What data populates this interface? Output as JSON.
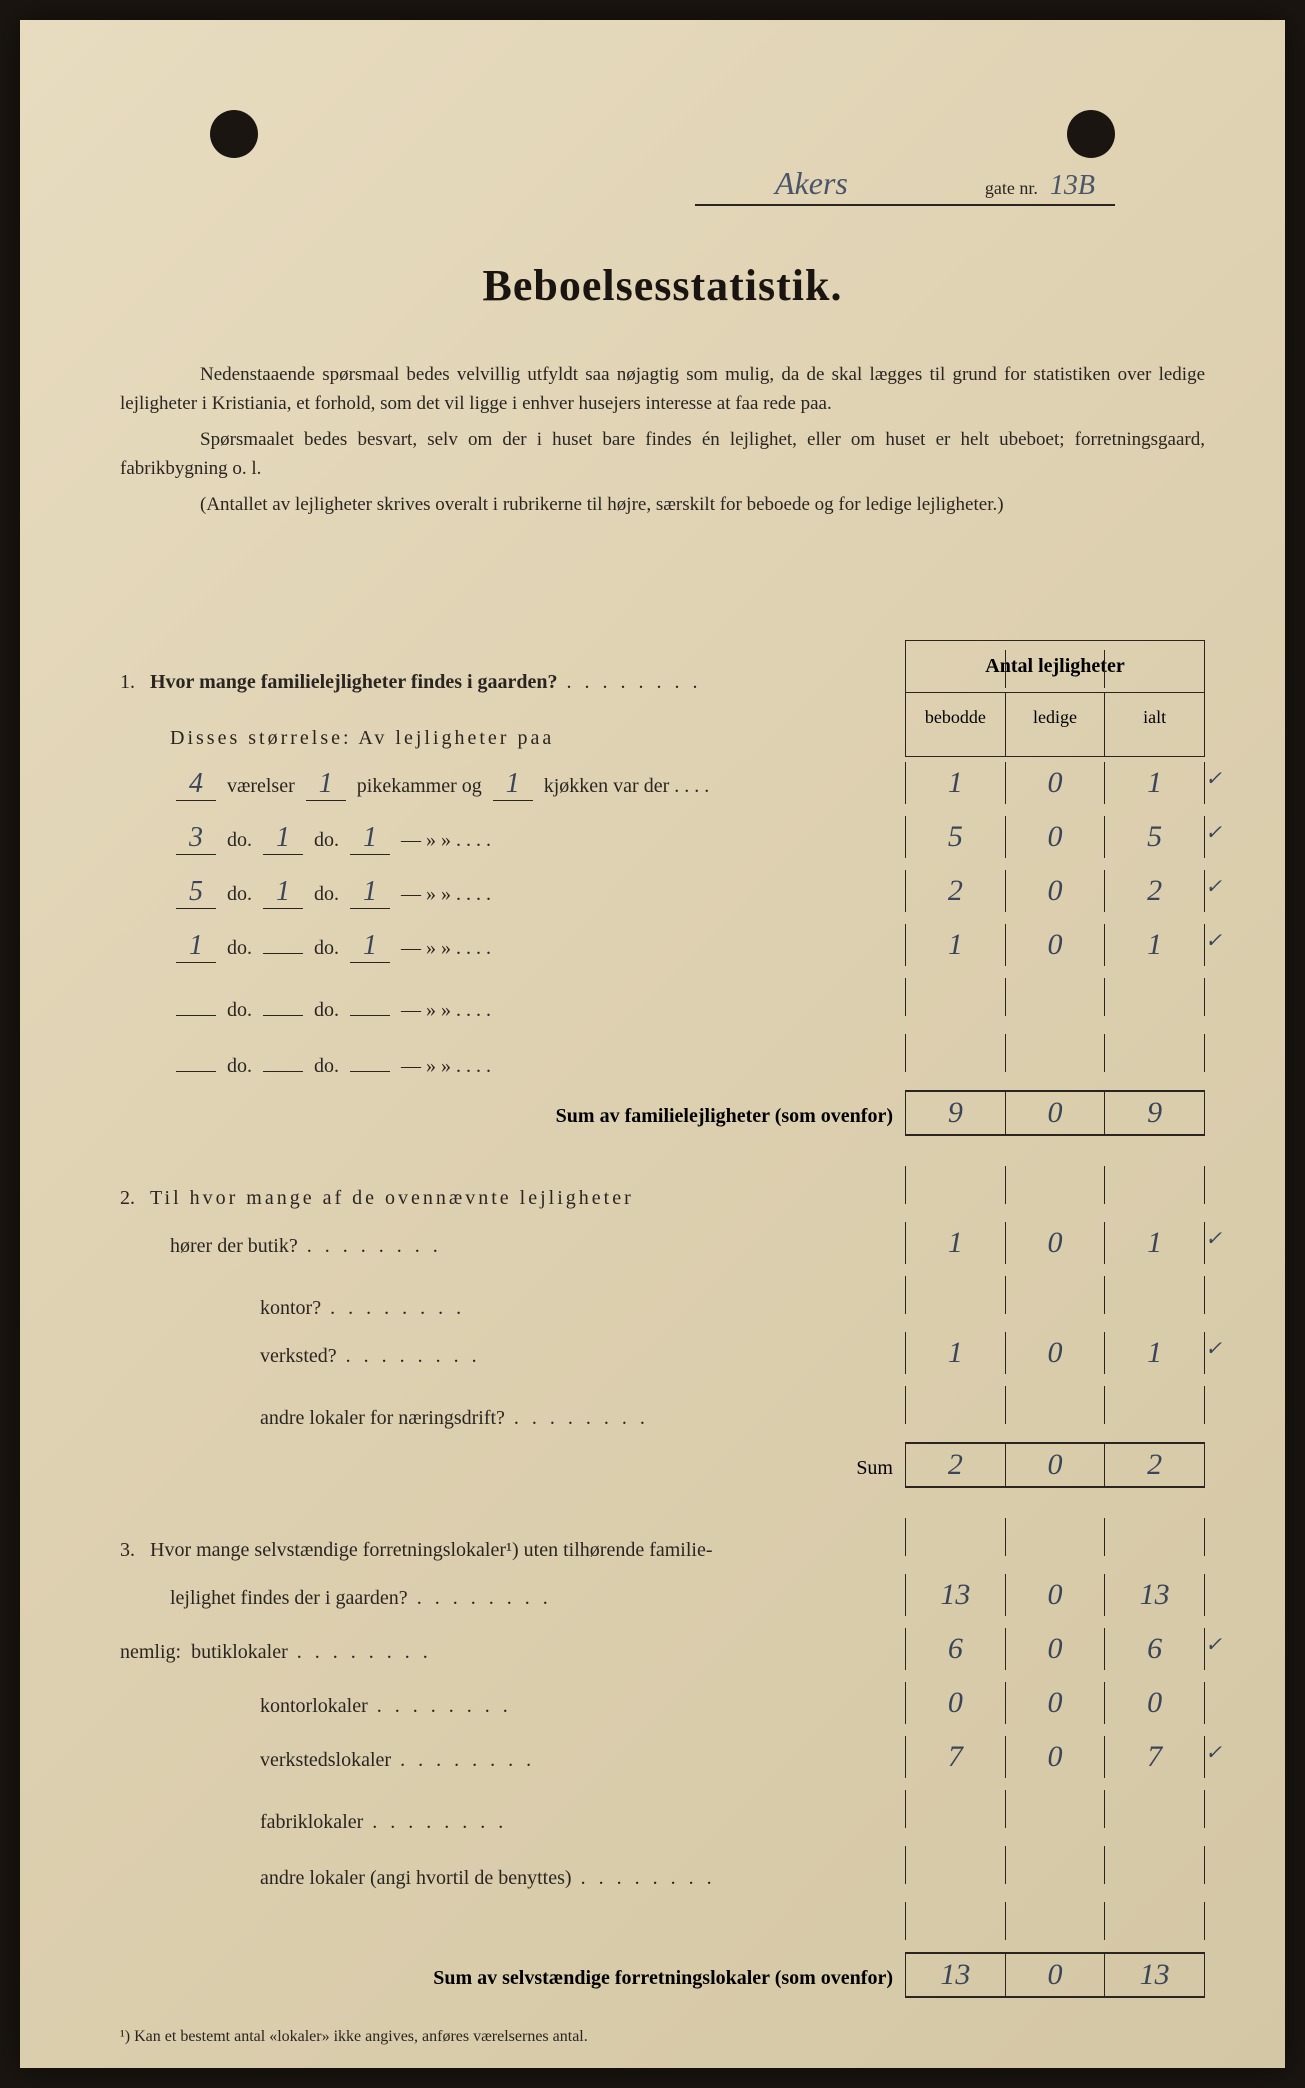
{
  "header": {
    "street": "Akers",
    "gate_label": "gate nr.",
    "gate_nr": "13B"
  },
  "title": "Beboelsesstatistik.",
  "intro": {
    "p1": "Nedenstaaende spørsmaal bedes velvillig utfyldt saa nøjagtig som mulig, da de skal lægges til grund for statistiken over ledige lejligheter i Kristiania, et forhold, som det vil ligge i enhver husejers interesse at faa rede paa.",
    "p2": "Spørsmaalet bedes besvart, selv om der i huset bare findes én lejlighet, eller om huset er helt ubeboet; forretningsgaard, fabrikbygning o. l.",
    "p3": "(Antallet av lejligheter skrives overalt i rubrikerne til højre, særskilt for beboede og for ledige lejligheter.)"
  },
  "table_header": {
    "title": "Antal lejligheter",
    "cols": [
      "bebodde",
      "ledige",
      "ialt"
    ]
  },
  "q1": {
    "label": "Hvor mange familielejligheter findes i gaarden?",
    "sub_label": "Disses størrelse:  Av lejligheter paa",
    "rows": [
      {
        "vaerelser": "4",
        "pike": "1",
        "kjokken": "1",
        "b": "1",
        "l": "0",
        "i": "1",
        "check": true
      },
      {
        "vaerelser": "3",
        "pike": "1",
        "kjokken": "1",
        "b": "5",
        "l": "0",
        "i": "5",
        "check": true
      },
      {
        "vaerelser": "5",
        "pike": "1",
        "kjokken": "1",
        "b": "2",
        "l": "0",
        "i": "2",
        "check": true
      },
      {
        "vaerelser": "1",
        "pike": "",
        "kjokken": "1",
        "b": "1",
        "l": "0",
        "i": "1",
        "check": true
      },
      {
        "vaerelser": "",
        "pike": "",
        "kjokken": "",
        "b": "",
        "l": "",
        "i": "",
        "check": false
      },
      {
        "vaerelser": "",
        "pike": "",
        "kjokken": "",
        "b": "",
        "l": "",
        "i": "",
        "check": false
      }
    ],
    "labels": {
      "vaer": "værelser",
      "pike": "pikekammer og",
      "kjok": "kjøkken var der",
      "do": "do."
    },
    "sum_label": "Sum av familielejligheter (som ovenfor)",
    "sum": {
      "b": "9",
      "l": "0",
      "i": "9"
    }
  },
  "q2": {
    "label": "Til hvor mange af de ovennævnte lejligheter",
    "rows": [
      {
        "label": "hører der butik?",
        "b": "1",
        "l": "0",
        "i": "1",
        "check": true
      },
      {
        "label": "kontor?",
        "b": "",
        "l": "",
        "i": "",
        "check": false
      },
      {
        "label": "verksted?",
        "b": "1",
        "l": "0",
        "i": "1",
        "check": true
      },
      {
        "label": "andre lokaler for næringsdrift?",
        "b": "",
        "l": "",
        "i": "",
        "check": false
      }
    ],
    "sum_label": "Sum",
    "sum": {
      "b": "2",
      "l": "0",
      "i": "2"
    }
  },
  "q3": {
    "label_a": "Hvor mange selvstændige forretningslokaler¹) uten tilhørende familie-",
    "label_b": "lejlighet findes der i gaarden?",
    "main": {
      "b": "13",
      "l": "0",
      "i": "13"
    },
    "nemlig": "nemlig:",
    "rows": [
      {
        "label": "butiklokaler",
        "b": "6",
        "l": "0",
        "i": "6",
        "check": true
      },
      {
        "label": "kontorlokaler",
        "b": "0",
        "l": "0",
        "i": "0",
        "check": false
      },
      {
        "label": "verkstedslokaler",
        "b": "7",
        "l": "0",
        "i": "7",
        "check": true
      },
      {
        "label": "fabriklokaler",
        "b": "",
        "l": "",
        "i": "",
        "check": false
      },
      {
        "label": "andre lokaler (angi hvortil de benyttes)",
        "b": "",
        "l": "",
        "i": "",
        "check": false
      }
    ],
    "sum_label": "Sum av selvstændige forretningslokaler (som ovenfor)",
    "sum": {
      "b": "13",
      "l": "0",
      "i": "13"
    }
  },
  "footnote": "¹)  Kan et bestemt antal «lokaler» ikke angives, anføres værelsernes antal."
}
